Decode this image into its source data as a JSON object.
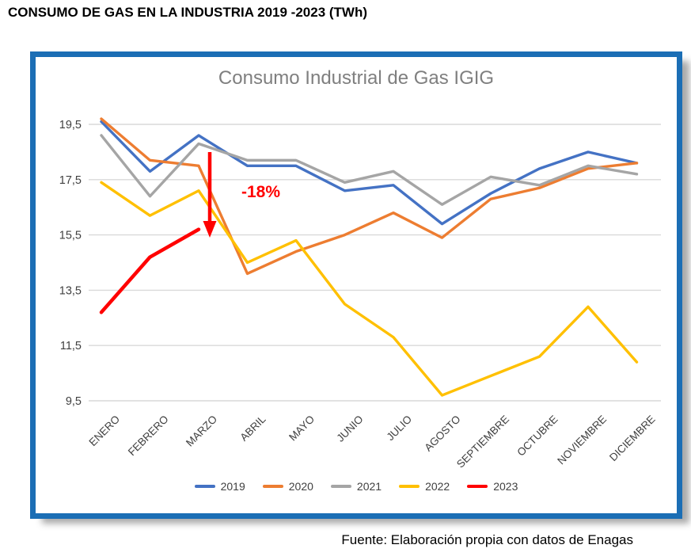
{
  "page": {
    "title": "CONSUMO DE GAS EN LA INDUSTRIA 2019 -2023 (TWh)",
    "footer": "Fuente: Elaboración propia con datos de Enagas"
  },
  "chart": {
    "title": "Consumo Industrial de Gas IGIG",
    "border_color": "#1B6EB5",
    "gridline_color": "#D9D9D9"
  },
  "annotation": {
    "label": "-18%",
    "color": "#FF0000",
    "arrow": "down"
  },
  "chart_data": {
    "type": "line",
    "title": "Consumo Industrial de Gas IGIG",
    "categories": [
      "ENERO",
      "FEBRERO",
      "MARZO",
      "ABRIL",
      "MAYO",
      "JUNIO",
      "JULIO",
      "AGOSTO",
      "SEPTIEMBRE",
      "OCTUBRE",
      "NOVIEMBRE",
      "DICIEMBRE"
    ],
    "series": [
      {
        "name": "2019",
        "color": "#4472C4",
        "values": [
          19.6,
          17.8,
          19.1,
          18.0,
          18.0,
          17.1,
          17.3,
          15.9,
          17.0,
          17.9,
          18.5,
          18.1
        ]
      },
      {
        "name": "2020",
        "color": "#ED7D31",
        "values": [
          19.7,
          18.2,
          18.0,
          14.1,
          14.9,
          15.5,
          16.3,
          15.4,
          16.8,
          17.2,
          17.9,
          18.1
        ]
      },
      {
        "name": "2021",
        "color": "#A5A5A5",
        "values": [
          19.1,
          16.9,
          18.8,
          18.2,
          18.2,
          17.4,
          17.8,
          16.6,
          17.6,
          17.3,
          18.0,
          17.7
        ]
      },
      {
        "name": "2022",
        "color": "#FFC000",
        "values": [
          17.4,
          16.2,
          17.1,
          14.5,
          15.3,
          13.0,
          11.8,
          9.7,
          10.4,
          11.1,
          12.9,
          10.9
        ]
      },
      {
        "name": "2023",
        "color": "#FF0000",
        "values": [
          12.7,
          14.7,
          15.7
        ]
      }
    ],
    "y_ticks": [
      "19,5",
      "17,5",
      "15,5",
      "13,5",
      "11,5",
      "9,5"
    ],
    "y_tick_values": [
      19.5,
      17.5,
      15.5,
      13.5,
      11.5,
      9.5
    ],
    "y_axis": {
      "min": 9.5,
      "max": 19.5,
      "step": 2,
      "decimal_separator": ","
    },
    "grid": true,
    "legend_position": "bottom"
  }
}
